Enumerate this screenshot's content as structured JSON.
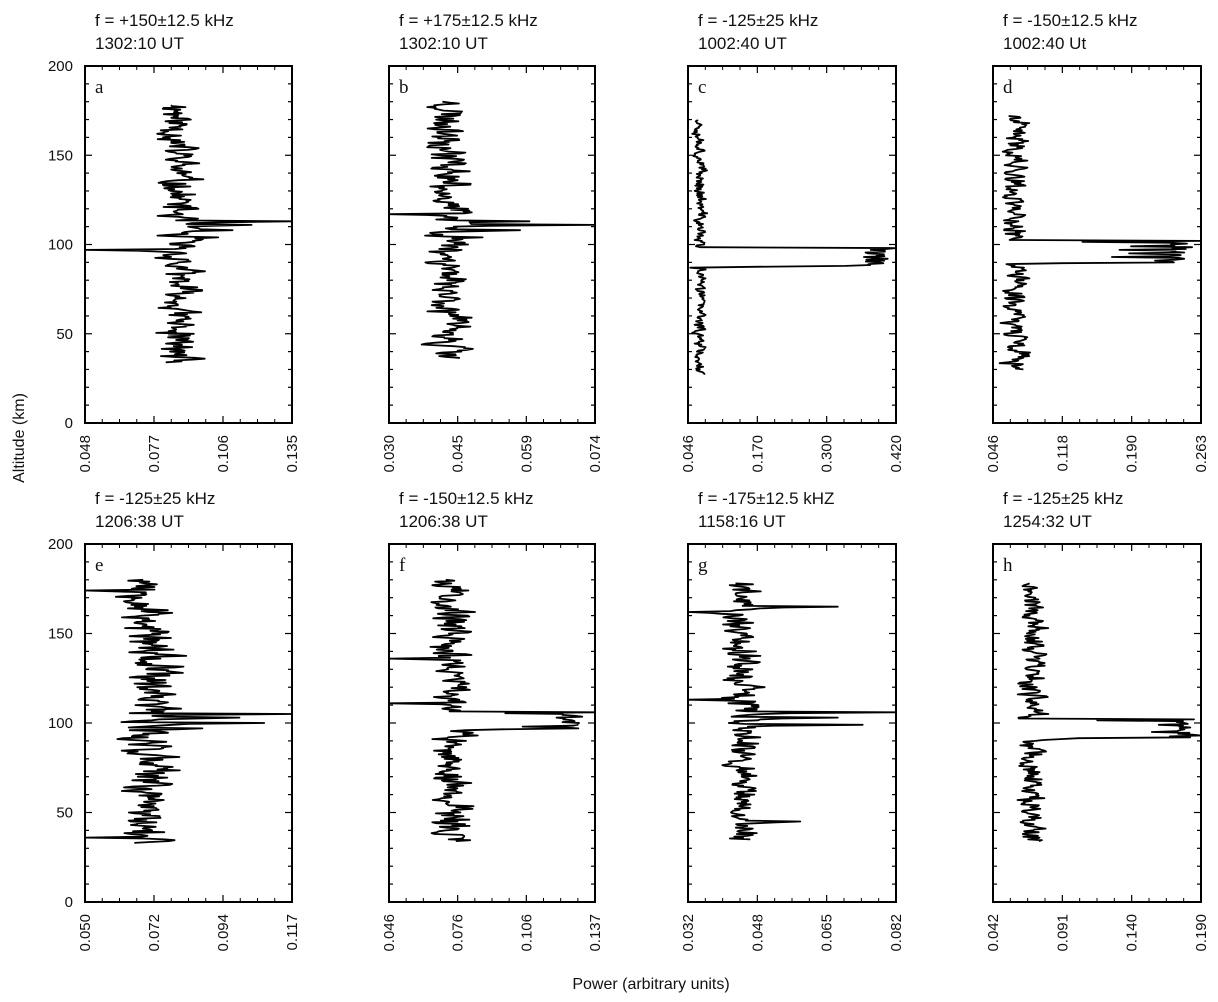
{
  "figure": {
    "ylabel": "Altitude (km)",
    "xlabel": "Power (arbitrary units)"
  },
  "chart_data": [
    {
      "type": "line",
      "panel_label": "a",
      "freq_label": "f = +150±12.5 kHz",
      "time_label": "1302:10 UT",
      "xticks": [
        "0.048",
        "0.077",
        "0.106",
        "0.135"
      ],
      "xlim": [
        0.048,
        0.135
      ],
      "ylim": [
        0,
        200
      ],
      "yticks": [
        "0",
        "50",
        "100",
        "150",
        "200"
      ],
      "altitude_range": [
        34,
        178
      ],
      "baseline": 0.087,
      "noise": 0.01,
      "seed": 11,
      "peaks": [
        {
          "alt": 113,
          "value": 0.135
        },
        {
          "alt": 111,
          "value": 0.118
        },
        {
          "alt": 108,
          "value": 0.11
        },
        {
          "alt": 104,
          "value": 0.104
        },
        {
          "alt": 97,
          "value": 0.048
        }
      ]
    },
    {
      "type": "line",
      "panel_label": "b",
      "freq_label": "f = +175±12.5 kHz",
      "time_label": "1302:10 UT",
      "xticks": [
        "0.030",
        "0.045",
        "0.059",
        "0.074"
      ],
      "xlim": [
        0.03,
        0.074
      ],
      "ylim": [
        0,
        200
      ],
      "yticks": [
        "0",
        "50",
        "100",
        "150",
        "200"
      ],
      "altitude_range": [
        36,
        180
      ],
      "baseline": 0.043,
      "noise": 0.005,
      "seed": 23,
      "peaks": [
        {
          "alt": 117,
          "value": 0.03
        },
        {
          "alt": 113,
          "value": 0.06
        },
        {
          "alt": 111,
          "value": 0.074
        },
        {
          "alt": 108,
          "value": 0.058
        },
        {
          "alt": 104,
          "value": 0.05
        }
      ]
    },
    {
      "type": "line",
      "panel_label": "c",
      "freq_label": "f = -125±25 kHz",
      "time_label": "1002:40 UT",
      "xticks": [
        "0.046",
        "0.170",
        "0.300",
        "0.420"
      ],
      "xlim": [
        0.046,
        0.42
      ],
      "ylim": [
        0,
        200
      ],
      "yticks": [
        "0",
        "50",
        "100",
        "150",
        "200"
      ],
      "altitude_range": [
        27,
        170
      ],
      "baseline": 0.068,
      "noise": 0.012,
      "seed": 37,
      "peaks": [
        {
          "alt": 98,
          "value": 0.42
        },
        {
          "alt": 96,
          "value": 0.4
        },
        {
          "alt": 94,
          "value": 0.385
        },
        {
          "alt": 92,
          "value": 0.405
        },
        {
          "alt": 90,
          "value": 0.39
        },
        {
          "alt": 88,
          "value": 0.33
        },
        {
          "alt": 87,
          "value": 0.05
        }
      ],
      "block": [
        88,
        98
      ]
    },
    {
      "type": "line",
      "panel_label": "d",
      "freq_label": "f = -150±12.5 kHz",
      "time_label": "1002:40 Ut",
      "xticks": [
        "0.046",
        "0.118",
        "0.190",
        "0.263"
      ],
      "xlim": [
        0.046,
        0.263
      ],
      "ylim": [
        0,
        200
      ],
      "yticks": [
        "0",
        "50",
        "100",
        "150",
        "200"
      ],
      "altitude_range": [
        30,
        172
      ],
      "baseline": 0.07,
      "noise": 0.015,
      "seed": 41,
      "peaks": [
        {
          "alt": 102,
          "value": 0.263
        },
        {
          "alt": 99,
          "value": 0.19
        },
        {
          "alt": 97,
          "value": 0.178
        },
        {
          "alt": 95,
          "value": 0.188
        },
        {
          "alt": 93,
          "value": 0.17
        },
        {
          "alt": 91,
          "value": 0.215
        },
        {
          "alt": 89,
          "value": 0.06
        }
      ],
      "block": [
        90,
        101
      ]
    },
    {
      "type": "line",
      "panel_label": "e",
      "freq_label": "f = -125±25 kHz",
      "time_label": "1206:38 UT",
      "xticks": [
        "0.050",
        "0.072",
        "0.094",
        "0.117"
      ],
      "xlim": [
        0.05,
        0.117
      ],
      "ylim": [
        0,
        200
      ],
      "yticks": [
        "0",
        "50",
        "100",
        "150",
        "200"
      ],
      "altitude_range": [
        33,
        180
      ],
      "baseline": 0.071,
      "noise": 0.01,
      "seed": 53,
      "peaks": [
        {
          "alt": 105,
          "value": 0.117
        },
        {
          "alt": 103,
          "value": 0.1
        },
        {
          "alt": 100,
          "value": 0.108
        },
        {
          "alt": 97,
          "value": 0.088
        },
        {
          "alt": 36,
          "value": 0.05
        },
        {
          "alt": 174,
          "value": 0.05
        }
      ]
    },
    {
      "type": "line",
      "panel_label": "f",
      "freq_label": "f = -150±12.5 kHz",
      "time_label": "1206:38 UT",
      "xticks": [
        "0.046",
        "0.076",
        "0.106",
        "0.137"
      ],
      "xlim": [
        0.046,
        0.137
      ],
      "ylim": [
        0,
        200
      ],
      "yticks": [
        "0",
        "50",
        "100",
        "150",
        "200"
      ],
      "altitude_range": [
        34,
        180
      ],
      "baseline": 0.074,
      "noise": 0.01,
      "seed": 67,
      "peaks": [
        {
          "alt": 106,
          "value": 0.137
        },
        {
          "alt": 103,
          "value": 0.12
        },
        {
          "alt": 101,
          "value": 0.128
        },
        {
          "alt": 98,
          "value": 0.105
        },
        {
          "alt": 96,
          "value": 0.08
        },
        {
          "alt": 136,
          "value": 0.046
        },
        {
          "alt": 111,
          "value": 0.046
        }
      ],
      "block": [
        97,
        105
      ]
    },
    {
      "type": "line",
      "panel_label": "g",
      "freq_label": "f = -175±12.5 kHZ",
      "time_label": "1158:16 UT",
      "xticks": [
        "0.032",
        "0.048",
        "0.065",
        "0.082"
      ],
      "xlim": [
        0.032,
        0.082
      ],
      "ylim": [
        0,
        200
      ],
      "yticks": [
        "0",
        "50",
        "100",
        "150",
        "200"
      ],
      "altitude_range": [
        35,
        178
      ],
      "baseline": 0.045,
      "noise": 0.005,
      "seed": 79,
      "peaks": [
        {
          "alt": 106,
          "value": 0.082
        },
        {
          "alt": 103,
          "value": 0.068
        },
        {
          "alt": 99,
          "value": 0.074
        },
        {
          "alt": 113,
          "value": 0.032
        },
        {
          "alt": 165,
          "value": 0.068
        },
        {
          "alt": 162,
          "value": 0.032
        },
        {
          "alt": 45,
          "value": 0.059
        }
      ]
    },
    {
      "type": "line",
      "panel_label": "h",
      "freq_label": "f = -125±25 kHz",
      "time_label": "1254:32 UT",
      "xticks": [
        "0.042",
        "0.091",
        "0.140",
        "0.190"
      ],
      "xlim": [
        0.042,
        0.19
      ],
      "ylim": [
        0,
        200
      ],
      "yticks": [
        "0",
        "50",
        "100",
        "150",
        "200"
      ],
      "altitude_range": [
        34,
        178
      ],
      "baseline": 0.07,
      "noise": 0.01,
      "seed": 97,
      "peaks": [
        {
          "alt": 102,
          "value": 0.185
        },
        {
          "alt": 99,
          "value": 0.16
        },
        {
          "alt": 97,
          "value": 0.175
        },
        {
          "alt": 95,
          "value": 0.155
        },
        {
          "alt": 93,
          "value": 0.19
        },
        {
          "alt": 91,
          "value": 0.09
        }
      ],
      "block": [
        92,
        101
      ]
    }
  ]
}
